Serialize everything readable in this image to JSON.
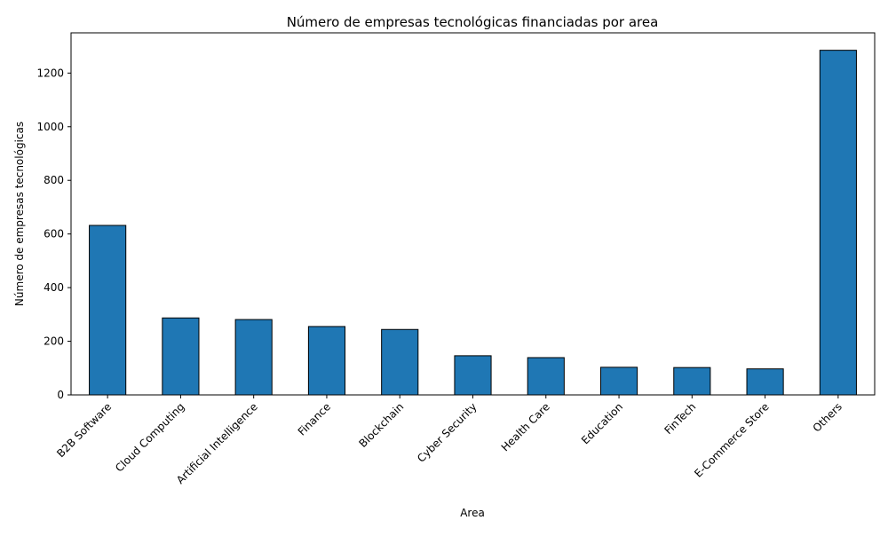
{
  "chart_data": {
    "type": "bar",
    "title": "Número de empresas tecnológicas financiadas por area",
    "xlabel": "Area",
    "ylabel": "Número de empresas tecnológicas",
    "categories": [
      "B2B Software",
      "Cloud Computing",
      "Artificial Intelligence",
      "Finance",
      "Blockchain",
      "Cyber Security",
      "Health Care",
      "Education",
      "FinTech",
      "E-Commerce Store",
      "Others"
    ],
    "values": [
      632,
      287,
      281,
      255,
      244,
      146,
      139,
      103,
      102,
      97,
      1285
    ],
    "ylim": [
      0,
      1350
    ],
    "yticks": [
      0,
      200,
      400,
      600,
      800,
      1000,
      1200
    ],
    "bar_color": "#1f77b4",
    "bar_edge_color": "#000000",
    "grid": false,
    "legend": "none",
    "xtick_rotation": 45
  }
}
